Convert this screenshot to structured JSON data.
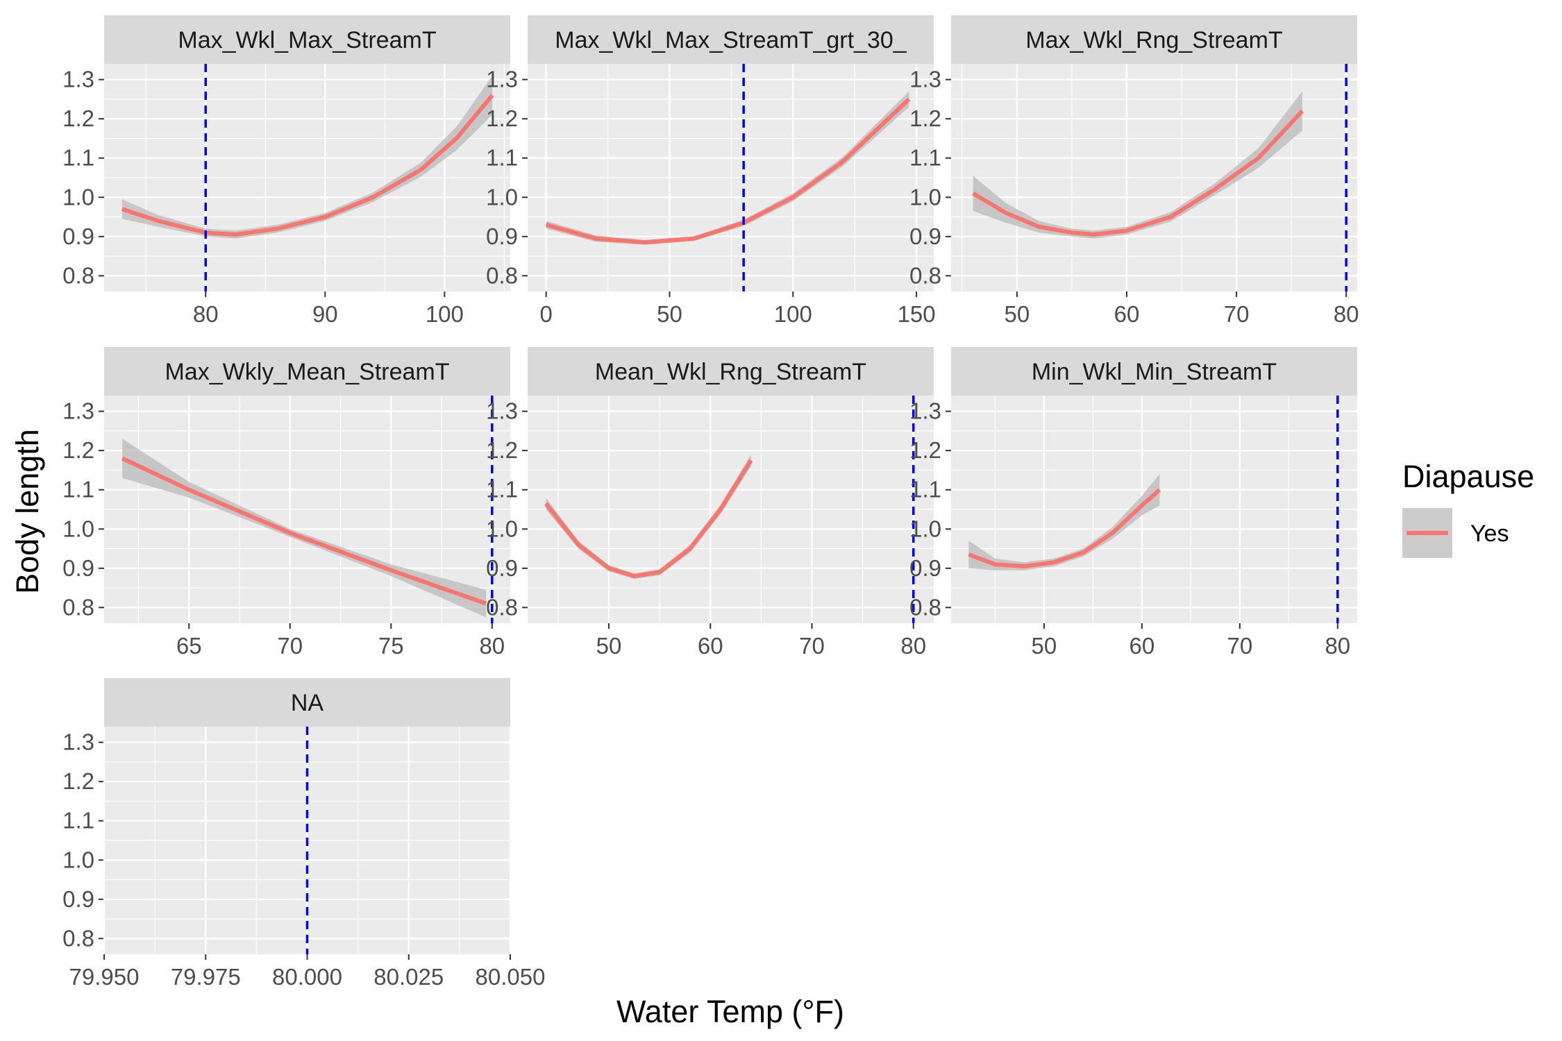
{
  "chart_data": {
    "type": "line",
    "xlabel": "Water Temp (°F)",
    "ylabel": "Body length",
    "y_ticks": [
      "0.8",
      "0.9",
      "1.0",
      "1.1",
      "1.2",
      "1.3"
    ],
    "ylim": [
      0.76,
      1.34
    ],
    "grid": true,
    "legend": {
      "title": "Diapause",
      "entries": [
        "Yes"
      ],
      "position": "right"
    },
    "colors": {
      "fit_line": "#F8766D",
      "ribbon": "#bfbfbf",
      "ref_line": "#0000ff",
      "panel_bg": "#ebebeb",
      "strip_bg": "#d9d9d9"
    },
    "reference_line_x": 80,
    "panels": [
      {
        "title": "Max_Wkl_Max_StreamT",
        "xlim": [
          71.5,
          105.5
        ],
        "x_ticks": [
          {
            "v": 80,
            "l": "80"
          },
          {
            "v": 90,
            "l": "90"
          },
          {
            "v": 100,
            "l": "100"
          }
        ],
        "series": [
          {
            "name": "Yes",
            "x": [
              73,
              76,
              80,
              82.5,
              86,
              90,
              94,
              98,
              101,
              104
            ],
            "y": [
              0.97,
              0.94,
              0.91,
              0.905,
              0.92,
              0.95,
              1.0,
              1.07,
              1.15,
              1.26
            ],
            "ci": [
              0.025,
              0.015,
              0.01,
              0.01,
              0.01,
              0.01,
              0.012,
              0.018,
              0.03,
              0.05
            ]
          }
        ]
      },
      {
        "title": "Max_Wkl_Max_StreamT_grt_30_",
        "xlim": [
          -7.5,
          157
        ],
        "x_ticks": [
          {
            "v": 0,
            "l": "0"
          },
          {
            "v": 50,
            "l": "50"
          },
          {
            "v": 100,
            "l": "100"
          },
          {
            "v": 150,
            "l": "150"
          }
        ],
        "series": [
          {
            "name": "Yes",
            "x": [
              0,
              20,
              40,
              60,
              80,
              100,
              120,
              147
            ],
            "y": [
              0.93,
              0.895,
              0.885,
              0.895,
              0.935,
              1.0,
              1.09,
              1.25
            ],
            "ci": [
              0.01,
              0.008,
              0.006,
              0.006,
              0.008,
              0.01,
              0.012,
              0.02
            ]
          }
        ]
      },
      {
        "title": "Max_Wkl_Rng_StreamT",
        "xlim": [
          44,
          81
        ],
        "x_ticks": [
          {
            "v": 50,
            "l": "50"
          },
          {
            "v": 60,
            "l": "60"
          },
          {
            "v": 70,
            "l": "70"
          },
          {
            "v": 80,
            "l": "80"
          }
        ],
        "series": [
          {
            "name": "Yes",
            "x": [
              46,
              49,
              52,
              55,
              57,
              60,
              64,
              68,
              72,
              76
            ],
            "y": [
              1.01,
              0.96,
              0.925,
              0.91,
              0.905,
              0.915,
              0.95,
              1.02,
              1.1,
              1.22
            ],
            "ci": [
              0.045,
              0.025,
              0.015,
              0.01,
              0.01,
              0.01,
              0.012,
              0.015,
              0.025,
              0.05
            ]
          }
        ]
      },
      {
        "title": "Max_Wkly_Mean_StreamT",
        "xlim": [
          60.8,
          80.9
        ],
        "x_ticks": [
          {
            "v": 65,
            "l": "65"
          },
          {
            "v": 70,
            "l": "70"
          },
          {
            "v": 75,
            "l": "75"
          },
          {
            "v": 80,
            "l": "80"
          }
        ],
        "series": [
          {
            "name": "Yes",
            "x": [
              61.7,
              65,
              70,
              75,
              79.7
            ],
            "y": [
              1.18,
              1.1,
              0.99,
              0.895,
              0.81
            ],
            "ci": [
              0.05,
              0.02,
              0.01,
              0.015,
              0.035
            ]
          }
        ]
      },
      {
        "title": "Mean_Wkl_Rng_StreamT",
        "xlim": [
          42,
          82
        ],
        "x_ticks": [
          {
            "v": 50,
            "l": "50"
          },
          {
            "v": 60,
            "l": "60"
          },
          {
            "v": 70,
            "l": "70"
          },
          {
            "v": 80,
            "l": "80"
          }
        ],
        "series": [
          {
            "name": "Yes",
            "x": [
              43.8,
              47,
              50,
              52.5,
              55,
              58,
              61,
              64
            ],
            "y": [
              1.065,
              0.96,
              0.9,
              0.88,
              0.89,
              0.95,
              1.05,
              1.175
            ],
            "ci": [
              0.015,
              0.01,
              0.008,
              0.007,
              0.008,
              0.01,
              0.012,
              0.015
            ]
          }
        ]
      },
      {
        "title": "Min_Wkl_Min_StreamT",
        "xlim": [
          40.5,
          82
        ],
        "x_ticks": [
          {
            "v": 50,
            "l": "50"
          },
          {
            "v": 60,
            "l": "60"
          },
          {
            "v": 70,
            "l": "70"
          },
          {
            "v": 80,
            "l": "80"
          }
        ],
        "series": [
          {
            "name": "Yes",
            "x": [
              42.3,
              45,
              48,
              51,
              54,
              57,
              60,
              61.8
            ],
            "y": [
              0.935,
              0.91,
              0.905,
              0.915,
              0.94,
              0.99,
              1.06,
              1.1
            ],
            "ci": [
              0.035,
              0.015,
              0.01,
              0.01,
              0.01,
              0.015,
              0.025,
              0.04
            ]
          }
        ]
      },
      {
        "title": "NA",
        "xlim": [
          79.95,
          80.05
        ],
        "x_ticks": [
          {
            "v": 79.95,
            "l": "79.950"
          },
          {
            "v": 79.975,
            "l": "79.975"
          },
          {
            "v": 80.0,
            "l": "80.000"
          },
          {
            "v": 80.025,
            "l": "80.025"
          },
          {
            "v": 80.05,
            "l": "80.050"
          }
        ],
        "series": []
      }
    ]
  }
}
